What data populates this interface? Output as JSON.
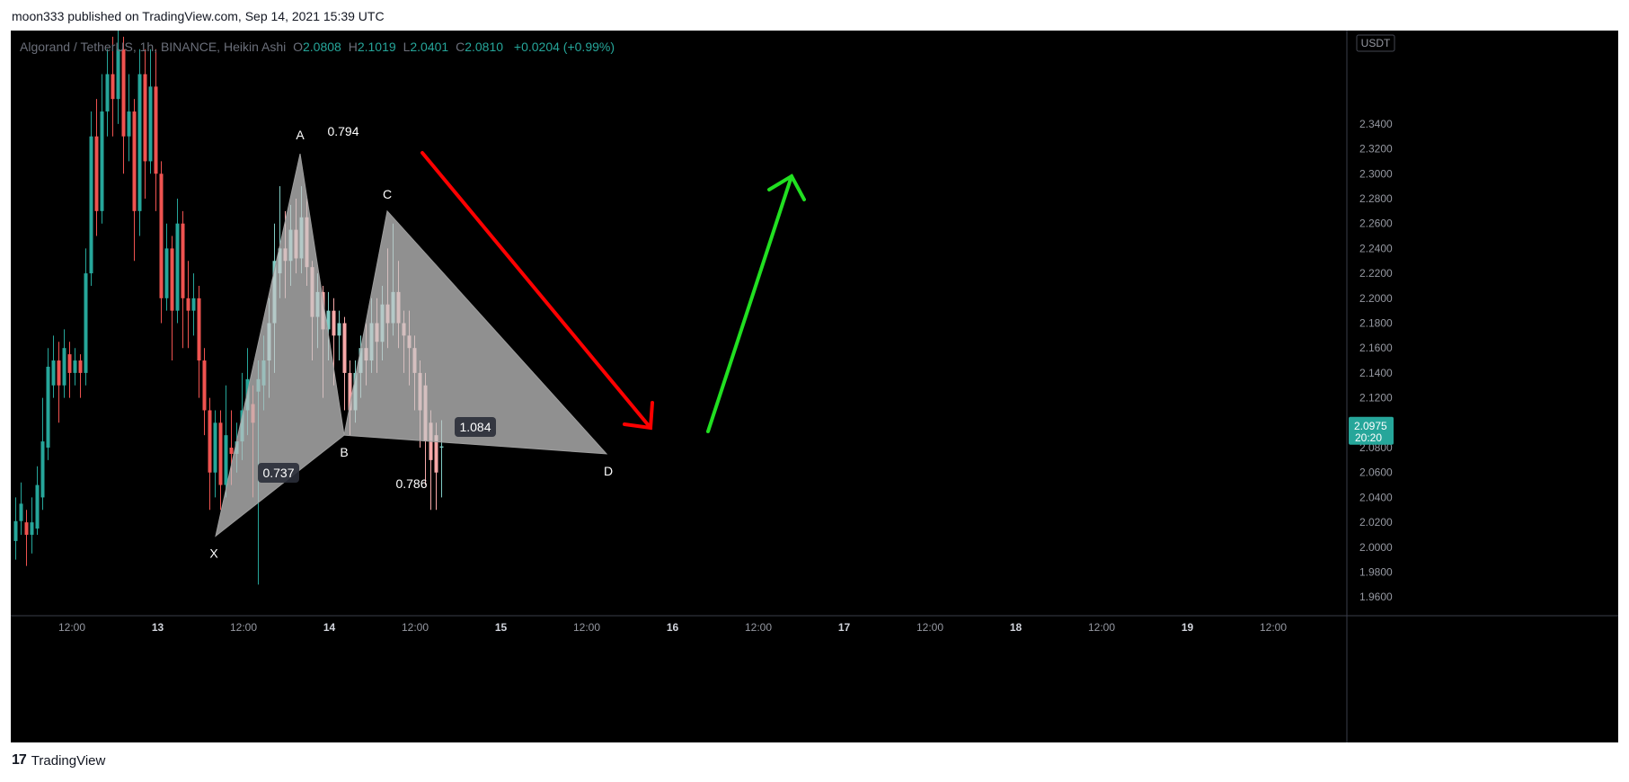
{
  "header": {
    "published_text": "moon333 published on TradingView.com, Sep 14, 2021 15:39 UTC"
  },
  "legend": {
    "symbol": "Algorand / TetherUS, 1h, BINANCE, Heikin Ashi",
    "open_label": "O",
    "open": "2.0808",
    "high_label": "H",
    "high": "2.1019",
    "low_label": "L",
    "low": "2.0401",
    "close_label": "C",
    "close": "2.0810",
    "change": "+0.0204 (+0.99%)"
  },
  "price_axis": {
    "currency_label": "USDT",
    "current_price": "2.0975",
    "countdown": "20:20",
    "colors": {
      "up": "#26a69a",
      "down": "#ef5350",
      "up_light": "#80cbc4",
      "down_light": "#f7a8a8"
    }
  },
  "time_axis": {
    "ticks": [
      "12:00",
      "13",
      "12:00",
      "14",
      "12:00",
      "15",
      "12:00",
      "16",
      "12:00",
      "17",
      "12:00",
      "18",
      "12:00",
      "19",
      "12:00"
    ]
  },
  "pattern": {
    "points": [
      {
        "label": "X",
        "price": 2.009
      },
      {
        "label": "A",
        "price": 2.316
      },
      {
        "label": "B",
        "price": 2.09
      },
      {
        "label": "C",
        "price": 2.27
      },
      {
        "label": "D",
        "price": 2.075
      }
    ],
    "ratios": [
      "0.737",
      "0.794",
      "0.786",
      "1.084"
    ]
  },
  "footer": {
    "brand": "TradingView",
    "logo_text": "17"
  },
  "chart_data": {
    "type": "candlestick",
    "title": "Algorand / TetherUS, 1h, BINANCE, Heikin Ashi",
    "ylim": [
      1.945,
      2.415
    ],
    "y_ticks": [
      1.96,
      1.98,
      2.0,
      2.02,
      2.04,
      2.06,
      2.08,
      2.1,
      2.12,
      2.14,
      2.16,
      2.18,
      2.2,
      2.22,
      2.24,
      2.26,
      2.28,
      2.3,
      2.32,
      2.34
    ],
    "y_tick_labels": [
      "1.9600",
      "1.9800",
      "2.0000",
      "2.0200",
      "2.0400",
      "2.0600",
      "2.0800",
      "2.1000",
      "2.1200",
      "2.1400",
      "2.1600",
      "2.1800",
      "2.2000",
      "2.2200",
      "2.2400",
      "2.2600",
      "2.2800",
      "2.3000",
      "2.3200",
      "2.3400"
    ],
    "candles": [
      {
        "o": 2.005,
        "c": 2.021,
        "h": 2.04,
        "l": 1.99
      },
      {
        "o": 2.021,
        "c": 2.035,
        "h": 2.052,
        "l": 2.01
      },
      {
        "o": 2.02,
        "c": 2.01,
        "h": 2.03,
        "l": 1.985
      },
      {
        "o": 2.01,
        "c": 2.02,
        "h": 2.04,
        "l": 1.995
      },
      {
        "o": 2.015,
        "c": 2.05,
        "h": 2.065,
        "l": 2.01
      },
      {
        "o": 2.04,
        "c": 2.085,
        "h": 2.12,
        "l": 2.03
      },
      {
        "o": 2.08,
        "c": 2.145,
        "h": 2.16,
        "l": 2.07
      },
      {
        "o": 2.13,
        "c": 2.15,
        "h": 2.17,
        "l": 2.12
      },
      {
        "o": 2.15,
        "c": 2.13,
        "h": 2.165,
        "l": 2.1
      },
      {
        "o": 2.13,
        "c": 2.16,
        "h": 2.175,
        "l": 2.12
      },
      {
        "o": 2.155,
        "c": 2.14,
        "h": 2.165,
        "l": 2.12
      },
      {
        "o": 2.14,
        "c": 2.15,
        "h": 2.16,
        "l": 2.13
      },
      {
        "o": 2.15,
        "c": 2.14,
        "h": 2.155,
        "l": 2.12
      },
      {
        "o": 2.14,
        "c": 2.22,
        "h": 2.24,
        "l": 2.13
      },
      {
        "o": 2.22,
        "c": 2.33,
        "h": 2.35,
        "l": 2.21
      },
      {
        "o": 2.33,
        "c": 2.27,
        "h": 2.36,
        "l": 2.25
      },
      {
        "o": 2.27,
        "c": 2.35,
        "h": 2.38,
        "l": 2.26
      },
      {
        "o": 2.35,
        "c": 2.38,
        "h": 2.4,
        "l": 2.33
      },
      {
        "o": 2.38,
        "c": 2.36,
        "h": 2.41,
        "l": 2.33
      },
      {
        "o": 2.36,
        "c": 2.4,
        "h": 2.415,
        "l": 2.34
      },
      {
        "o": 2.4,
        "c": 2.33,
        "h": 2.41,
        "l": 2.3
      },
      {
        "o": 2.33,
        "c": 2.35,
        "h": 2.38,
        "l": 2.31
      },
      {
        "o": 2.35,
        "c": 2.27,
        "h": 2.36,
        "l": 2.23
      },
      {
        "o": 2.27,
        "c": 2.38,
        "h": 2.4,
        "l": 2.25
      },
      {
        "o": 2.38,
        "c": 2.31,
        "h": 2.4,
        "l": 2.28
      },
      {
        "o": 2.31,
        "c": 2.37,
        "h": 2.4,
        "l": 2.3
      },
      {
        "o": 2.37,
        "c": 2.3,
        "h": 2.4,
        "l": 2.27
      },
      {
        "o": 2.3,
        "c": 2.2,
        "h": 2.31,
        "l": 2.18
      },
      {
        "o": 2.2,
        "c": 2.24,
        "h": 2.26,
        "l": 2.19
      },
      {
        "o": 2.24,
        "c": 2.19,
        "h": 2.25,
        "l": 2.15
      },
      {
        "o": 2.19,
        "c": 2.26,
        "h": 2.28,
        "l": 2.18
      },
      {
        "o": 2.26,
        "c": 2.2,
        "h": 2.27,
        "l": 2.16
      },
      {
        "o": 2.2,
        "c": 2.19,
        "h": 2.23,
        "l": 2.16
      },
      {
        "o": 2.19,
        "c": 2.2,
        "h": 2.22,
        "l": 2.17
      },
      {
        "o": 2.2,
        "c": 2.15,
        "h": 2.21,
        "l": 2.12
      },
      {
        "o": 2.15,
        "c": 2.11,
        "h": 2.16,
        "l": 2.09
      },
      {
        "o": 2.11,
        "c": 2.06,
        "h": 2.12,
        "l": 2.03
      },
      {
        "o": 2.06,
        "c": 2.1,
        "h": 2.11,
        "l": 2.04
      },
      {
        "o": 2.1,
        "c": 2.05,
        "h": 2.11,
        "l": 2.03
      },
      {
        "o": 2.05,
        "c": 2.09,
        "h": 2.13,
        "l": 2.04
      },
      {
        "o": 2.08,
        "c": 2.075,
        "h": 2.11,
        "l": 2.05
      },
      {
        "o": 2.075,
        "c": 2.085,
        "h": 2.1,
        "l": 2.06
      },
      {
        "o": 2.085,
        "c": 2.11,
        "h": 2.14,
        "l": 2.07
      },
      {
        "o": 2.11,
        "c": 2.135,
        "h": 2.16,
        "l": 2.09
      },
      {
        "o": 2.115,
        "c": 2.1,
        "h": 2.13,
        "l": 2.04
      },
      {
        "o": 2.125,
        "c": 2.135,
        "h": 2.15,
        "l": 1.97
      },
      {
        "o": 2.13,
        "c": 2.15,
        "h": 2.17,
        "l": 2.11
      },
      {
        "o": 2.15,
        "c": 2.18,
        "h": 2.2,
        "l": 2.12
      },
      {
        "o": 2.18,
        "c": 2.23,
        "h": 2.26,
        "l": 2.14
      },
      {
        "o": 2.22,
        "c": 2.24,
        "h": 2.29,
        "l": 2.2
      },
      {
        "o": 2.24,
        "c": 2.23,
        "h": 2.27,
        "l": 2.2
      },
      {
        "o": 2.23,
        "c": 2.255,
        "h": 2.275,
        "l": 2.21
      },
      {
        "o": 2.255,
        "c": 2.232,
        "h": 2.28,
        "l": 2.22
      },
      {
        "o": 2.232,
        "c": 2.265,
        "h": 2.29,
        "l": 2.22
      },
      {
        "o": 2.265,
        "c": 2.225,
        "h": 2.28,
        "l": 2.21
      },
      {
        "o": 2.225,
        "c": 2.185,
        "h": 2.23,
        "l": 2.15
      },
      {
        "o": 2.185,
        "c": 2.205,
        "h": 2.22,
        "l": 2.16
      },
      {
        "o": 2.205,
        "c": 2.175,
        "h": 2.21,
        "l": 2.12
      },
      {
        "o": 2.175,
        "c": 2.19,
        "h": 2.205,
        "l": 2.15
      },
      {
        "o": 2.19,
        "c": 2.17,
        "h": 2.2,
        "l": 2.13
      },
      {
        "o": 2.17,
        "c": 2.18,
        "h": 2.19,
        "l": 2.15
      },
      {
        "o": 2.18,
        "c": 2.14,
        "h": 2.185,
        "l": 2.11
      },
      {
        "o": 2.14,
        "c": 2.11,
        "h": 2.15,
        "l": 2.09
      },
      {
        "o": 2.11,
        "c": 2.14,
        "h": 2.15,
        "l": 2.1
      },
      {
        "o": 2.14,
        "c": 2.16,
        "h": 2.17,
        "l": 2.12
      },
      {
        "o": 2.16,
        "c": 2.15,
        "h": 2.18,
        "l": 2.13
      },
      {
        "o": 2.15,
        "c": 2.18,
        "h": 2.2,
        "l": 2.14
      },
      {
        "o": 2.18,
        "c": 2.165,
        "h": 2.2,
        "l": 2.14
      },
      {
        "o": 2.165,
        "c": 2.195,
        "h": 2.21,
        "l": 2.15
      },
      {
        "o": 2.195,
        "c": 2.18,
        "h": 2.24,
        "l": 2.16
      },
      {
        "o": 2.18,
        "c": 2.205,
        "h": 2.26,
        "l": 2.17
      },
      {
        "o": 2.205,
        "c": 2.18,
        "h": 2.23,
        "l": 2.16
      },
      {
        "o": 2.18,
        "c": 2.17,
        "h": 2.19,
        "l": 2.14
      },
      {
        "o": 2.17,
        "c": 2.16,
        "h": 2.19,
        "l": 2.13
      },
      {
        "o": 2.16,
        "c": 2.14,
        "h": 2.17,
        "l": 2.11
      },
      {
        "o": 2.14,
        "c": 2.11,
        "h": 2.15,
        "l": 2.08
      },
      {
        "o": 2.13,
        "c": 2.085,
        "h": 2.14,
        "l": 2.05
      },
      {
        "o": 2.1,
        "c": 2.07,
        "h": 2.11,
        "l": 2.03
      },
      {
        "o": 2.09,
        "c": 2.06,
        "h": 2.1,
        "l": 2.03
      },
      {
        "o": 2.08,
        "c": 2.081,
        "h": 2.102,
        "l": 2.04
      }
    ]
  }
}
